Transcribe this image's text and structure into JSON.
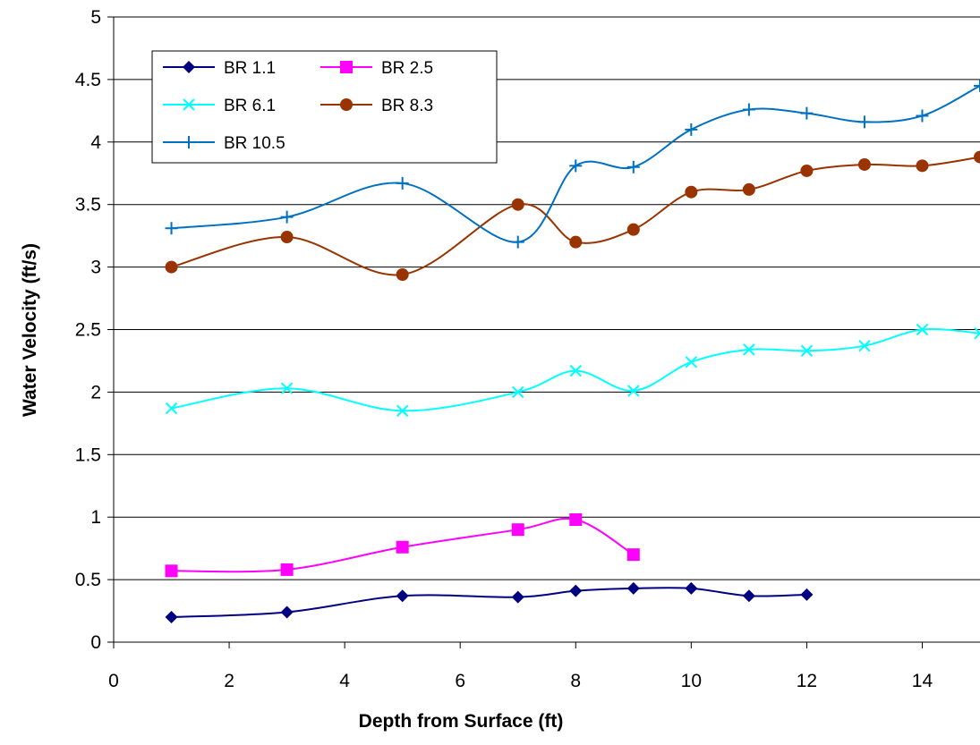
{
  "chart_data": {
    "type": "line",
    "title": "",
    "xlabel": "Depth from Surface (ft)",
    "ylabel": "Water Velocity (ft/s)",
    "xlim": [
      0,
      15
    ],
    "ylim": [
      0,
      5
    ],
    "xticks": [
      0,
      2,
      4,
      6,
      8,
      10,
      12,
      14
    ],
    "yticks": [
      0,
      0.5,
      1,
      1.5,
      2,
      2.5,
      3,
      3.5,
      4,
      4.5,
      5
    ],
    "grid": "horizontal",
    "legend_position": "top-left",
    "smoothed": true,
    "series": [
      {
        "name": "BR 1.1",
        "color": "#000080",
        "marker": "diamond",
        "x": [
          1,
          3,
          5,
          7,
          8,
          9,
          10,
          11,
          12
        ],
        "y": [
          0.2,
          0.24,
          0.37,
          0.36,
          0.41,
          0.43,
          0.43,
          0.37,
          0.38
        ]
      },
      {
        "name": "BR 2.5",
        "color": "#ff00ff",
        "marker": "square",
        "x": [
          1,
          3,
          5,
          7,
          8,
          9
        ],
        "y": [
          0.57,
          0.58,
          0.76,
          0.9,
          0.98,
          0.7
        ]
      },
      {
        "name": "BR 6.1",
        "color": "#00ffff",
        "marker": "x",
        "x": [
          1,
          3,
          5,
          7,
          8,
          9,
          10,
          11,
          12,
          13,
          14,
          15
        ],
        "y": [
          1.87,
          2.03,
          1.85,
          2.0,
          2.17,
          2.01,
          2.24,
          2.34,
          2.33,
          2.37,
          2.5,
          2.47
        ]
      },
      {
        "name": "BR 8.3",
        "color": "#993300",
        "marker": "circle",
        "x": [
          1,
          3,
          5,
          7,
          8,
          9,
          10,
          11,
          12,
          13,
          14,
          15
        ],
        "y": [
          3.0,
          3.24,
          2.94,
          3.5,
          3.2,
          3.3,
          3.6,
          3.62,
          3.77,
          3.82,
          3.81,
          3.88
        ]
      },
      {
        "name": "BR 10.5",
        "color": "#0070c0",
        "marker": "plus",
        "x": [
          1,
          3,
          5,
          7,
          8,
          9,
          10,
          11,
          12,
          13,
          14,
          15
        ],
        "y": [
          3.31,
          3.4,
          3.67,
          3.2,
          3.81,
          3.8,
          4.1,
          4.26,
          4.23,
          4.16,
          4.21,
          4.45
        ]
      }
    ]
  }
}
